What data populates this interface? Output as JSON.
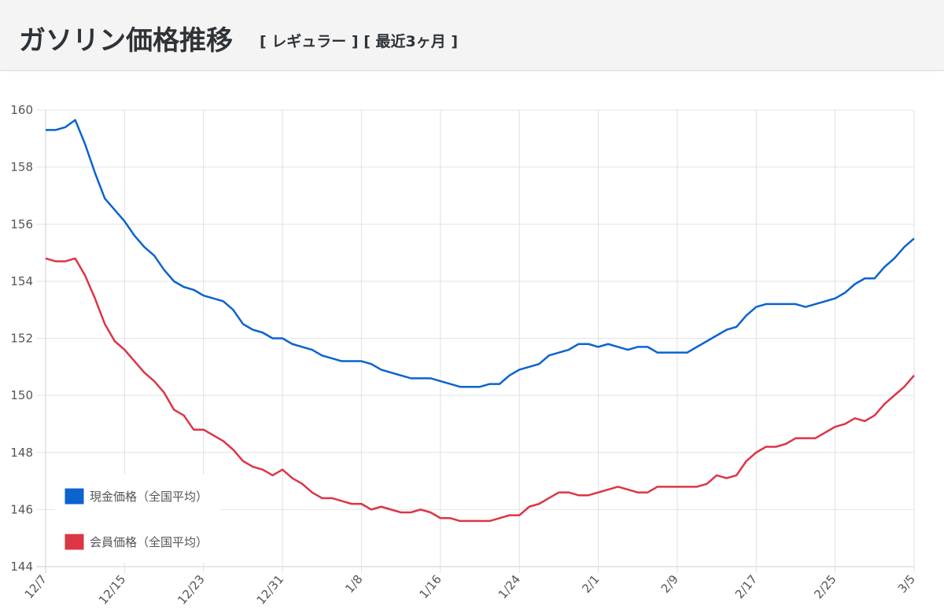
{
  "header": {
    "title": "ガソリン価格推移",
    "subtitle": "[ レギュラー ] [ 最近3ヶ月 ]"
  },
  "chart_data": {
    "type": "line",
    "title": "ガソリン価格推移",
    "xlabel": "",
    "ylabel": "",
    "ylim": [
      144,
      160
    ],
    "yticks": [
      "144",
      "146",
      "148",
      "150",
      "152",
      "154",
      "156",
      "158",
      "160"
    ],
    "xticks": [
      "12/7",
      "12/15",
      "12/23",
      "12/31",
      "1/8",
      "1/16",
      "1/24",
      "2/1",
      "2/9",
      "2/17",
      "2/25",
      "3/5"
    ],
    "x_range_days": [
      0,
      88
    ],
    "x_note": "one point per day from 12/7 to 3/5",
    "grid": true,
    "legend_position": "bottom-left",
    "series": [
      {
        "name": "現金価格（全国平均）",
        "color": "#0a63cf",
        "values": [
          159.3,
          159.3,
          159.4,
          159.65,
          158.8,
          157.8,
          156.9,
          156.5,
          156.1,
          155.6,
          155.2,
          154.9,
          154.4,
          154.0,
          153.8,
          153.7,
          153.5,
          153.4,
          153.3,
          153.0,
          152.5,
          152.3,
          152.2,
          152.0,
          152.0,
          151.8,
          151.7,
          151.6,
          151.4,
          151.3,
          151.2,
          151.2,
          151.2,
          151.1,
          150.9,
          150.8,
          150.7,
          150.6,
          150.6,
          150.6,
          150.5,
          150.4,
          150.3,
          150.3,
          150.3,
          150.4,
          150.4,
          150.7,
          150.9,
          151.0,
          151.1,
          151.4,
          151.5,
          151.6,
          151.8,
          151.8,
          151.7,
          151.8,
          151.7,
          151.6,
          151.7,
          151.7,
          151.5,
          151.5,
          151.5,
          151.5,
          151.7,
          151.9,
          152.1,
          152.3,
          152.4,
          152.8,
          153.1,
          153.2,
          153.2,
          153.2,
          153.2,
          153.1,
          153.2,
          153.3,
          153.4,
          153.6,
          153.9,
          154.1,
          154.1,
          154.5,
          154.8,
          155.2,
          155.5
        ]
      },
      {
        "name": "会員価格（全国平均）",
        "color": "#dc3545",
        "values": [
          154.8,
          154.7,
          154.7,
          154.8,
          154.2,
          153.4,
          152.5,
          151.9,
          151.6,
          151.2,
          150.8,
          150.5,
          150.1,
          149.5,
          149.3,
          148.8,
          148.8,
          148.6,
          148.4,
          148.1,
          147.7,
          147.5,
          147.4,
          147.2,
          147.4,
          147.1,
          146.9,
          146.6,
          146.4,
          146.4,
          146.3,
          146.2,
          146.2,
          146.0,
          146.1,
          146.0,
          145.9,
          145.9,
          146.0,
          145.9,
          145.7,
          145.7,
          145.6,
          145.6,
          145.6,
          145.6,
          145.7,
          145.8,
          145.8,
          146.1,
          146.2,
          146.4,
          146.6,
          146.6,
          146.5,
          146.5,
          146.6,
          146.7,
          146.8,
          146.7,
          146.6,
          146.6,
          146.8,
          146.8,
          146.8,
          146.8,
          146.8,
          146.9,
          147.2,
          147.1,
          147.2,
          147.7,
          148.0,
          148.2,
          148.2,
          148.3,
          148.5,
          148.5,
          148.5,
          148.7,
          148.9,
          149.0,
          149.2,
          149.1,
          149.3,
          149.7,
          150.0,
          150.3,
          150.7
        ]
      }
    ]
  }
}
